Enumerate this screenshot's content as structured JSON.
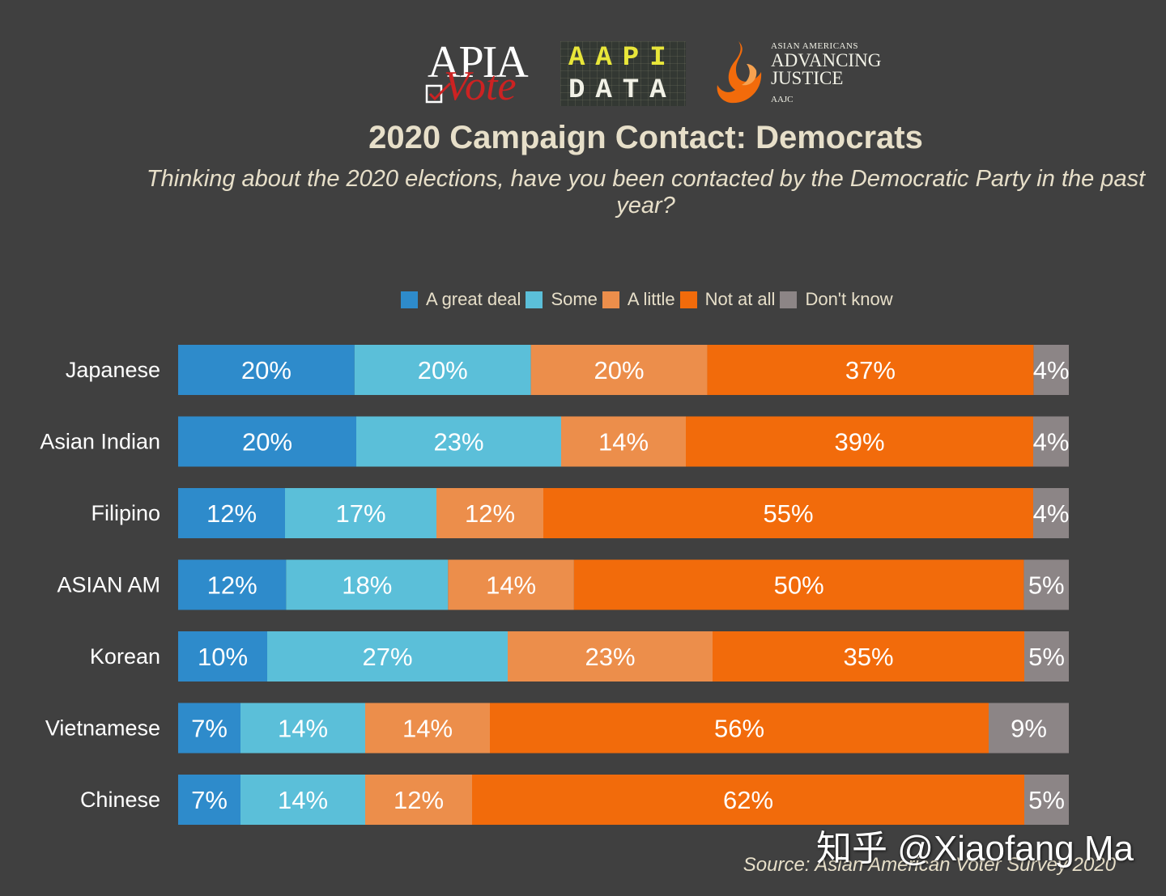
{
  "logos": {
    "apia_top": "APIA",
    "apia_bottom": "Vote",
    "aapi_line1": "AAPI",
    "aapi_line2": "DATA",
    "aaj_small": "ASIAN AMERICANS",
    "aaj_line1": "ADVANCING",
    "aaj_line2": "JUSTICE",
    "aaj_tiny": "AAJC"
  },
  "chart_data": {
    "type": "bar",
    "orientation": "horizontal",
    "stacked": true,
    "percent_stacked": true,
    "title": "2020 Campaign Contact: Democrats",
    "subtitle": "Thinking about the 2020 elections, have you been contacted by the Democratic Party in the past year?",
    "categories": [
      "Japanese",
      "Asian Indian",
      "Filipino",
      "ASIAN AM",
      "Korean",
      "Vietnamese",
      "Chinese"
    ],
    "series": [
      {
        "name": "A great deal",
        "color": "#2e8bcb",
        "values": [
          20,
          20,
          12,
          12,
          10,
          7,
          7
        ]
      },
      {
        "name": "Some",
        "color": "#5bbfd9",
        "values": [
          20,
          23,
          17,
          18,
          27,
          14,
          14
        ]
      },
      {
        "name": "A little",
        "color": "#ec8e4b",
        "values": [
          20,
          14,
          12,
          14,
          23,
          14,
          12
        ]
      },
      {
        "name": "Not at all",
        "color": "#f26b0b",
        "values": [
          37,
          39,
          55,
          50,
          35,
          56,
          62
        ]
      },
      {
        "name": "Don't know",
        "color": "#8c8586",
        "values": [
          4,
          4,
          4,
          5,
          5,
          9,
          5
        ]
      }
    ],
    "legend_position": "top",
    "grid": false,
    "data_label_color": "#ffffff",
    "source": "Source: Asian American Voter Survey 2020"
  },
  "watermark": "知乎 @Xiaofang Ma"
}
